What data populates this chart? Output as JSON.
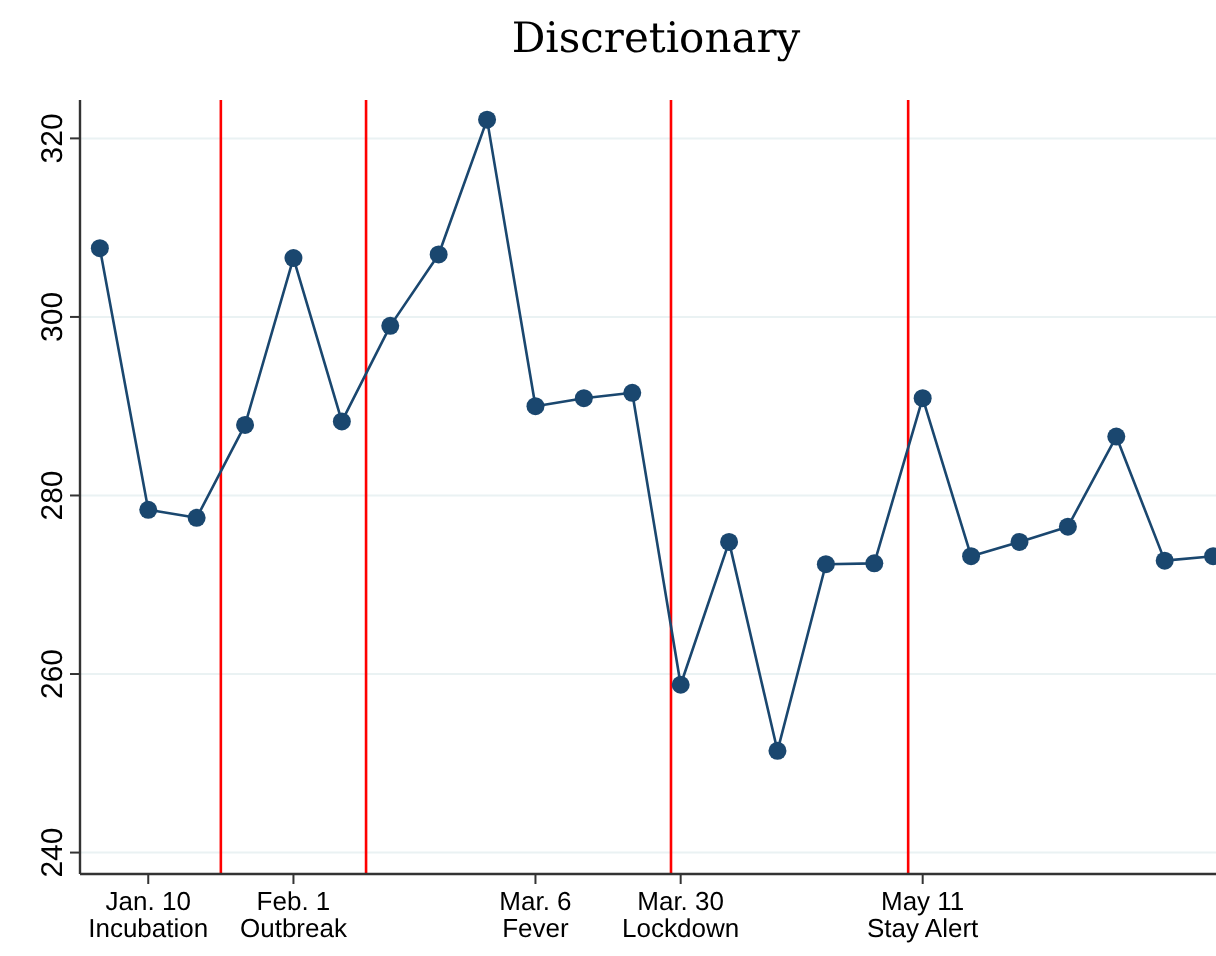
{
  "chart_data": {
    "type": "line",
    "title": "Discretionary",
    "categories": [
      null,
      "Jan. 10\nIncubation",
      null,
      null,
      "Feb. 1\nOutbreak",
      null,
      null,
      null,
      null,
      "Mar. 6\nFever",
      null,
      null,
      "Mar. 30\nLockdown",
      null,
      null,
      null,
      null,
      "May 11\nStay Alert",
      null,
      null,
      null,
      null,
      null,
      null
    ],
    "series": [
      {
        "color": "#1a476f",
        "values": [
          307.7,
          278.4,
          277.5,
          287.9,
          306.6,
          288.3,
          299.0,
          307.0,
          322.1,
          290.0,
          290.9,
          291.5,
          258.8,
          274.8,
          251.4,
          272.3,
          272.4,
          290.9,
          273.2,
          274.8,
          276.5,
          286.6,
          272.7,
          273.2
        ]
      }
    ],
    "ylim": [
      237.6,
      324.3
    ],
    "yticks": [
      240,
      260,
      280,
      300,
      320
    ],
    "grid": "y",
    "marker": "circle",
    "line_style": "solid"
  }
}
